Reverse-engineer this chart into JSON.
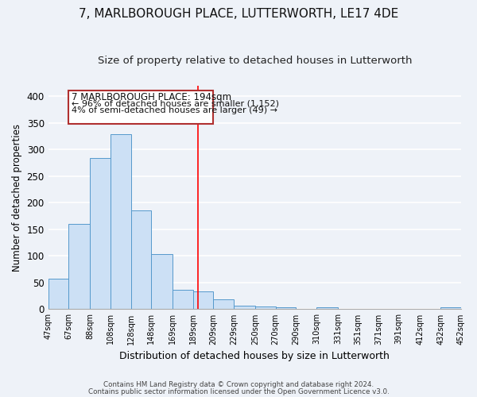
{
  "title": "7, MARLBOROUGH PLACE, LUTTERWORTH, LE17 4DE",
  "subtitle": "Size of property relative to detached houses in Lutterworth",
  "xlabel": "Distribution of detached houses by size in Lutterworth",
  "ylabel": "Number of detached properties",
  "bar_edges": [
    47,
    67,
    88,
    108,
    128,
    148,
    169,
    189,
    209,
    229,
    250,
    270,
    290,
    310,
    331,
    351,
    371,
    391,
    412,
    432,
    452
  ],
  "bar_heights": [
    57,
    160,
    284,
    328,
    185,
    103,
    37,
    33,
    18,
    6,
    5,
    3,
    0,
    4,
    0,
    0,
    0,
    0,
    0,
    3
  ],
  "bar_color": "#cce0f5",
  "bar_edge_color": "#5599cc",
  "property_line_x": 194,
  "ylim": [
    0,
    420
  ],
  "yticks": [
    0,
    50,
    100,
    150,
    200,
    250,
    300,
    350,
    400
  ],
  "annotation_title": "7 MARLBOROUGH PLACE: 194sqm",
  "annotation_line1": "← 96% of detached houses are smaller (1,152)",
  "annotation_line2": "4% of semi-detached houses are larger (49) →",
  "tick_labels": [
    "47sqm",
    "67sqm",
    "88sqm",
    "108sqm",
    "128sqm",
    "148sqm",
    "169sqm",
    "189sqm",
    "209sqm",
    "229sqm",
    "250sqm",
    "270sqm",
    "290sqm",
    "310sqm",
    "331sqm",
    "351sqm",
    "371sqm",
    "391sqm",
    "412sqm",
    "432sqm",
    "452sqm"
  ],
  "footnote1": "Contains HM Land Registry data © Crown copyright and database right 2024.",
  "footnote2": "Contains public sector information licensed under the Open Government Licence v3.0.",
  "background_color": "#eef2f8",
  "grid_color": "#ffffff",
  "title_fontsize": 11,
  "subtitle_fontsize": 9.5,
  "annotation_box_color": "#b03030",
  "ann_title_fontsize": 8.5,
  "ann_body_fontsize": 8.0
}
